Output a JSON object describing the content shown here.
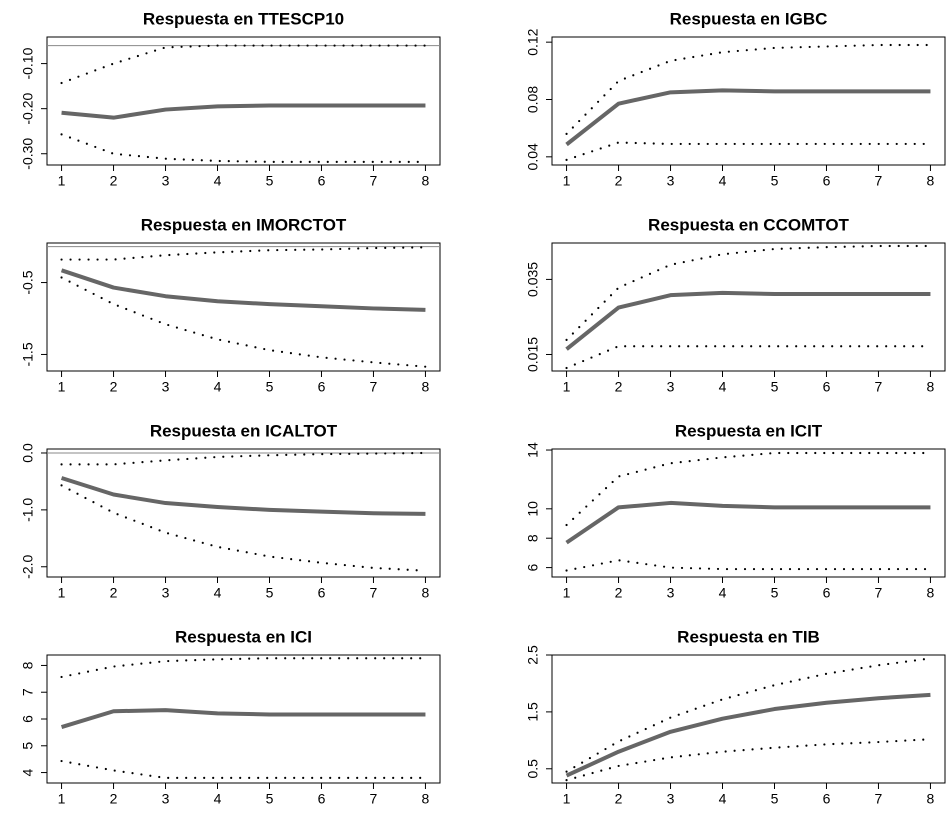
{
  "chart_data": [
    {
      "type": "line",
      "title": "Respuesta en TTESCP10",
      "x": [
        1,
        2,
        3,
        4,
        5,
        6,
        7,
        8
      ],
      "xlim": [
        0.72,
        8.28
      ],
      "xticks": [
        1,
        2,
        3,
        4,
        5,
        6,
        7,
        8
      ],
      "ylim": [
        -0.325,
        -0.041
      ],
      "yticks": [
        {
          "value": -0.1,
          "label": "-0.10"
        },
        {
          "value": -0.2,
          "label": "-0.20"
        },
        {
          "value": -0.3,
          "label": "-0.30"
        }
      ],
      "hline": -0.06,
      "series": [
        {
          "color": "#666666",
          "style": "solid",
          "values": [
            -0.209,
            -0.22,
            -0.202,
            -0.195,
            -0.193,
            -0.193,
            -0.193,
            -0.193
          ]
        },
        {
          "color": "#000000",
          "style": "dotted",
          "values": [
            -0.143,
            -0.1,
            -0.064,
            -0.06,
            -0.06,
            -0.06,
            -0.06,
            -0.06
          ]
        },
        {
          "color": "#000000",
          "style": "dotted",
          "values": [
            -0.257,
            -0.3,
            -0.311,
            -0.316,
            -0.318,
            -0.318,
            -0.318,
            -0.318
          ]
        }
      ]
    },
    {
      "type": "line",
      "title": "Respuesta en IGBC",
      "x": [
        1,
        2,
        3,
        4,
        5,
        6,
        7,
        8
      ],
      "xlim": [
        0.72,
        8.28
      ],
      "xticks": [
        1,
        2,
        3,
        4,
        5,
        6,
        7,
        8
      ],
      "ylim": [
        0.0343,
        0.1236
      ],
      "yticks": [
        0.04,
        0.08,
        0.12
      ],
      "series": [
        {
          "color": "#666666",
          "style": "solid",
          "values": [
            0.0486,
            0.0771,
            0.085,
            0.0864,
            0.0857,
            0.0857,
            0.0857,
            0.0857
          ]
        },
        {
          "color": "#000000",
          "style": "dotted",
          "values": [
            0.056,
            0.0929,
            0.107,
            0.113,
            0.116,
            0.117,
            0.118,
            0.118
          ]
        },
        {
          "color": "#000000",
          "style": "dotted",
          "values": [
            0.0379,
            0.05,
            0.049,
            0.049,
            0.049,
            0.049,
            0.049,
            0.049
          ]
        }
      ]
    },
    {
      "type": "line",
      "title": "Respuesta en IMORCTOT",
      "x": [
        1,
        2,
        3,
        4,
        5,
        6,
        7,
        8
      ],
      "xlim": [
        0.72,
        8.28
      ],
      "xticks": [
        1,
        2,
        3,
        4,
        5,
        6,
        7,
        8
      ],
      "ylim": [
        -1.73,
        0.05
      ],
      "yticks": [
        -0.5,
        -1.5
      ],
      "hline": 0,
      "series": [
        {
          "color": "#666666",
          "style": "solid",
          "values": [
            -0.33,
            -0.57,
            -0.69,
            -0.76,
            -0.8,
            -0.83,
            -0.86,
            -0.88
          ]
        },
        {
          "color": "#000000",
          "style": "dotted",
          "values": [
            -0.18,
            -0.18,
            -0.12,
            -0.08,
            -0.05,
            -0.04,
            -0.02,
            -0.01
          ]
        },
        {
          "color": "#000000",
          "style": "dotted",
          "values": [
            -0.43,
            -0.8,
            -1.08,
            -1.29,
            -1.44,
            -1.54,
            -1.61,
            -1.67
          ]
        }
      ]
    },
    {
      "type": "line",
      "title": "Respuesta en CCOMTOT",
      "x": [
        1,
        2,
        3,
        4,
        5,
        6,
        7,
        8
      ],
      "xlim": [
        0.72,
        8.28
      ],
      "xticks": [
        1,
        2,
        3,
        4,
        5,
        6,
        7,
        8
      ],
      "ylim": [
        0.0106,
        0.0447
      ],
      "yticks": [
        0.015,
        0.035
      ],
      "series": [
        {
          "color": "#666666",
          "style": "solid",
          "values": [
            0.0164,
            0.0275,
            0.0308,
            0.0314,
            0.0311,
            0.0311,
            0.0311,
            0.0311
          ]
        },
        {
          "color": "#000000",
          "style": "dotted",
          "values": [
            0.0189,
            0.0328,
            0.0389,
            0.0417,
            0.0431,
            0.0436,
            0.0439,
            0.0439
          ]
        },
        {
          "color": "#000000",
          "style": "dotted",
          "values": [
            0.0114,
            0.0172,
            0.0172,
            0.0172,
            0.0172,
            0.0172,
            0.0172,
            0.0172
          ]
        }
      ]
    },
    {
      "type": "line",
      "title": "Respuesta en ICALTOT",
      "x": [
        1,
        2,
        3,
        4,
        5,
        6,
        7,
        8
      ],
      "xlim": [
        0.72,
        8.28
      ],
      "xticks": [
        1,
        2,
        3,
        4,
        5,
        6,
        7,
        8
      ],
      "ylim": [
        -2.18,
        0.07
      ],
      "yticks": [
        {
          "value": 0,
          "label": "0.0"
        },
        {
          "value": -1,
          "label": "-1.0"
        },
        {
          "value": -2,
          "label": "-2.0"
        }
      ],
      "hline": 0,
      "series": [
        {
          "color": "#666666",
          "style": "solid",
          "values": [
            -0.44,
            -0.73,
            -0.88,
            -0.95,
            -1.0,
            -1.03,
            -1.06,
            -1.07
          ]
        },
        {
          "color": "#000000",
          "style": "dotted",
          "values": [
            -0.2,
            -0.2,
            -0.13,
            -0.07,
            -0.04,
            -0.02,
            -0.01,
            0
          ]
        },
        {
          "color": "#000000",
          "style": "dotted",
          "values": [
            -0.57,
            -1.05,
            -1.4,
            -1.65,
            -1.82,
            -1.93,
            -2.02,
            -2.07
          ]
        }
      ]
    },
    {
      "type": "line",
      "title": "Respuesta en ICIT",
      "x": [
        1,
        2,
        3,
        4,
        5,
        6,
        7,
        8
      ],
      "xlim": [
        0.72,
        8.28
      ],
      "xticks": [
        1,
        2,
        3,
        4,
        5,
        6,
        7,
        8
      ],
      "ylim": [
        5.36,
        14.07
      ],
      "yticks": [
        6,
        8,
        10,
        14
      ],
      "series": [
        {
          "color": "#666666",
          "style": "solid",
          "values": [
            7.7,
            10.1,
            10.4,
            10.2,
            10.1,
            10.1,
            10.1,
            10.1
          ]
        },
        {
          "color": "#000000",
          "style": "dotted",
          "values": [
            8.9,
            12.2,
            13.1,
            13.5,
            13.8,
            13.8,
            13.8,
            13.8
          ]
        },
        {
          "color": "#000000",
          "style": "dotted",
          "values": [
            5.8,
            6.5,
            6.0,
            5.9,
            5.9,
            5.9,
            5.9,
            5.9
          ]
        }
      ]
    },
    {
      "type": "line",
      "title": "Respuesta en ICI",
      "x": [
        1,
        2,
        3,
        4,
        5,
        6,
        7,
        8
      ],
      "xlim": [
        0.72,
        8.28
      ],
      "xticks": [
        1,
        2,
        3,
        4,
        5,
        6,
        7,
        8
      ],
      "ylim": [
        3.61,
        8.39
      ],
      "yticks": [
        4,
        5,
        6,
        7,
        8
      ],
      "series": [
        {
          "color": "#666666",
          "style": "solid",
          "values": [
            5.7,
            6.29,
            6.33,
            6.21,
            6.17,
            6.17,
            6.17,
            6.17
          ]
        },
        {
          "color": "#000000",
          "style": "dotted",
          "values": [
            7.57,
            7.96,
            8.16,
            8.23,
            8.27,
            8.27,
            8.27,
            8.27
          ]
        },
        {
          "color": "#000000",
          "style": "dotted",
          "values": [
            4.43,
            4.08,
            3.8,
            3.8,
            3.8,
            3.8,
            3.8,
            3.8
          ]
        }
      ]
    },
    {
      "type": "line",
      "title": "Respuesta en TIB",
      "x": [
        1,
        2,
        3,
        4,
        5,
        6,
        7,
        8
      ],
      "xlim": [
        0.72,
        8.28
      ],
      "xticks": [
        1,
        2,
        3,
        4,
        5,
        6,
        7,
        8
      ],
      "ylim": [
        0.25,
        2.5
      ],
      "yticks": [
        0.5,
        1.5,
        2.5
      ],
      "series": [
        {
          "color": "#666666",
          "style": "solid",
          "values": [
            0.38,
            0.8,
            1.15,
            1.38,
            1.55,
            1.66,
            1.74,
            1.8
          ]
        },
        {
          "color": "#000000",
          "style": "dotted",
          "values": [
            0.45,
            0.98,
            1.4,
            1.72,
            1.97,
            2.17,
            2.32,
            2.44
          ]
        },
        {
          "color": "#000000",
          "style": "dotted",
          "values": [
            0.3,
            0.55,
            0.7,
            0.8,
            0.87,
            0.93,
            0.97,
            1.02
          ]
        }
      ]
    }
  ]
}
